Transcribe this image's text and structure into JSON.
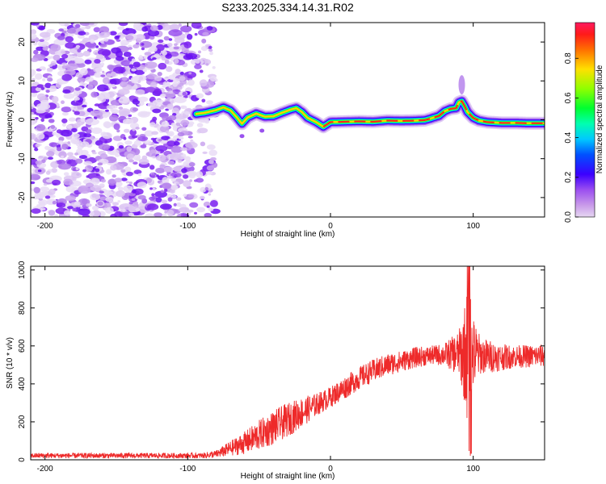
{
  "title": "S233.2025.334.14.31.R02",
  "chart_data": [
    {
      "type": "heatmap",
      "xlabel": "Height of straight line (km)",
      "ylabel": "Frequency (Hz)",
      "xlim": [
        -210,
        150
      ],
      "ylim": [
        -25,
        25
      ],
      "xticks": [
        -200,
        -100,
        0,
        100
      ],
      "yticks": [
        -20,
        -10,
        0,
        10,
        20
      ],
      "noise_region_x": [
        -210,
        -80
      ],
      "ridge": {
        "x": [
          -94,
          -88,
          -80,
          -75,
          -70,
          -66,
          -62,
          -58,
          -52,
          -46,
          -40,
          -34,
          -28,
          -24,
          -20,
          -16,
          -10,
          -5,
          0,
          10,
          20,
          30,
          40,
          50,
          60,
          66,
          70,
          76,
          80,
          84,
          88,
          90,
          92,
          94,
          96,
          100,
          104,
          110,
          120,
          130,
          140,
          150
        ],
        "y": [
          1.5,
          1.8,
          2.5,
          3.2,
          2.4,
          0.8,
          -1.0,
          0.6,
          1.6,
          0.8,
          0.9,
          1.8,
          2.6,
          3.0,
          2.0,
          0.5,
          -0.6,
          -1.8,
          -0.6,
          -0.5,
          -0.4,
          -0.5,
          -0.2,
          -0.3,
          -0.2,
          -0.1,
          0.3,
          1.0,
          2.2,
          2.8,
          3.0,
          4.5,
          4.8,
          3.5,
          2.0,
          0.5,
          -0.2,
          -0.6,
          -0.8,
          -0.8,
          -0.9,
          -0.9
        ]
      },
      "colorbar": {
        "label": "Normalized spectral amplitude",
        "ticks": [
          "0.0",
          "0.2",
          "0.4",
          "0.6",
          "0.8"
        ]
      }
    },
    {
      "type": "line",
      "xlabel": "Height of straight line (km)",
      "ylabel": "SNR (10 * v/v)",
      "xlim": [
        -210,
        150
      ],
      "ylim": [
        0,
        1020
      ],
      "xticks": [
        -200,
        -100,
        0,
        100
      ],
      "yticks": [
        0,
        200,
        400,
        600,
        800,
        1000
      ],
      "series_name": "SNR",
      "color": "#ee2a2a",
      "envelope": {
        "x": [
          -210,
          -90,
          -80,
          -70,
          -60,
          -50,
          -40,
          -30,
          -20,
          -10,
          0,
          10,
          20,
          30,
          40,
          50,
          60,
          70,
          80,
          90,
          95,
          97,
          100,
          105,
          110,
          120,
          130,
          140,
          150
        ],
        "mean": [
          22,
          22,
          30,
          60,
          90,
          130,
          170,
          210,
          250,
          290,
          330,
          380,
          430,
          470,
          500,
          520,
          540,
          550,
          555,
          560,
          560,
          560,
          555,
          550,
          545,
          540,
          545,
          545,
          550
        ],
        "spread": [
          14,
          14,
          20,
          40,
          60,
          80,
          90,
          90,
          80,
          60,
          55,
          60,
          60,
          60,
          60,
          55,
          55,
          50,
          60,
          120,
          300,
          460,
          200,
          100,
          90,
          70,
          60,
          60,
          60
        ]
      }
    }
  ]
}
